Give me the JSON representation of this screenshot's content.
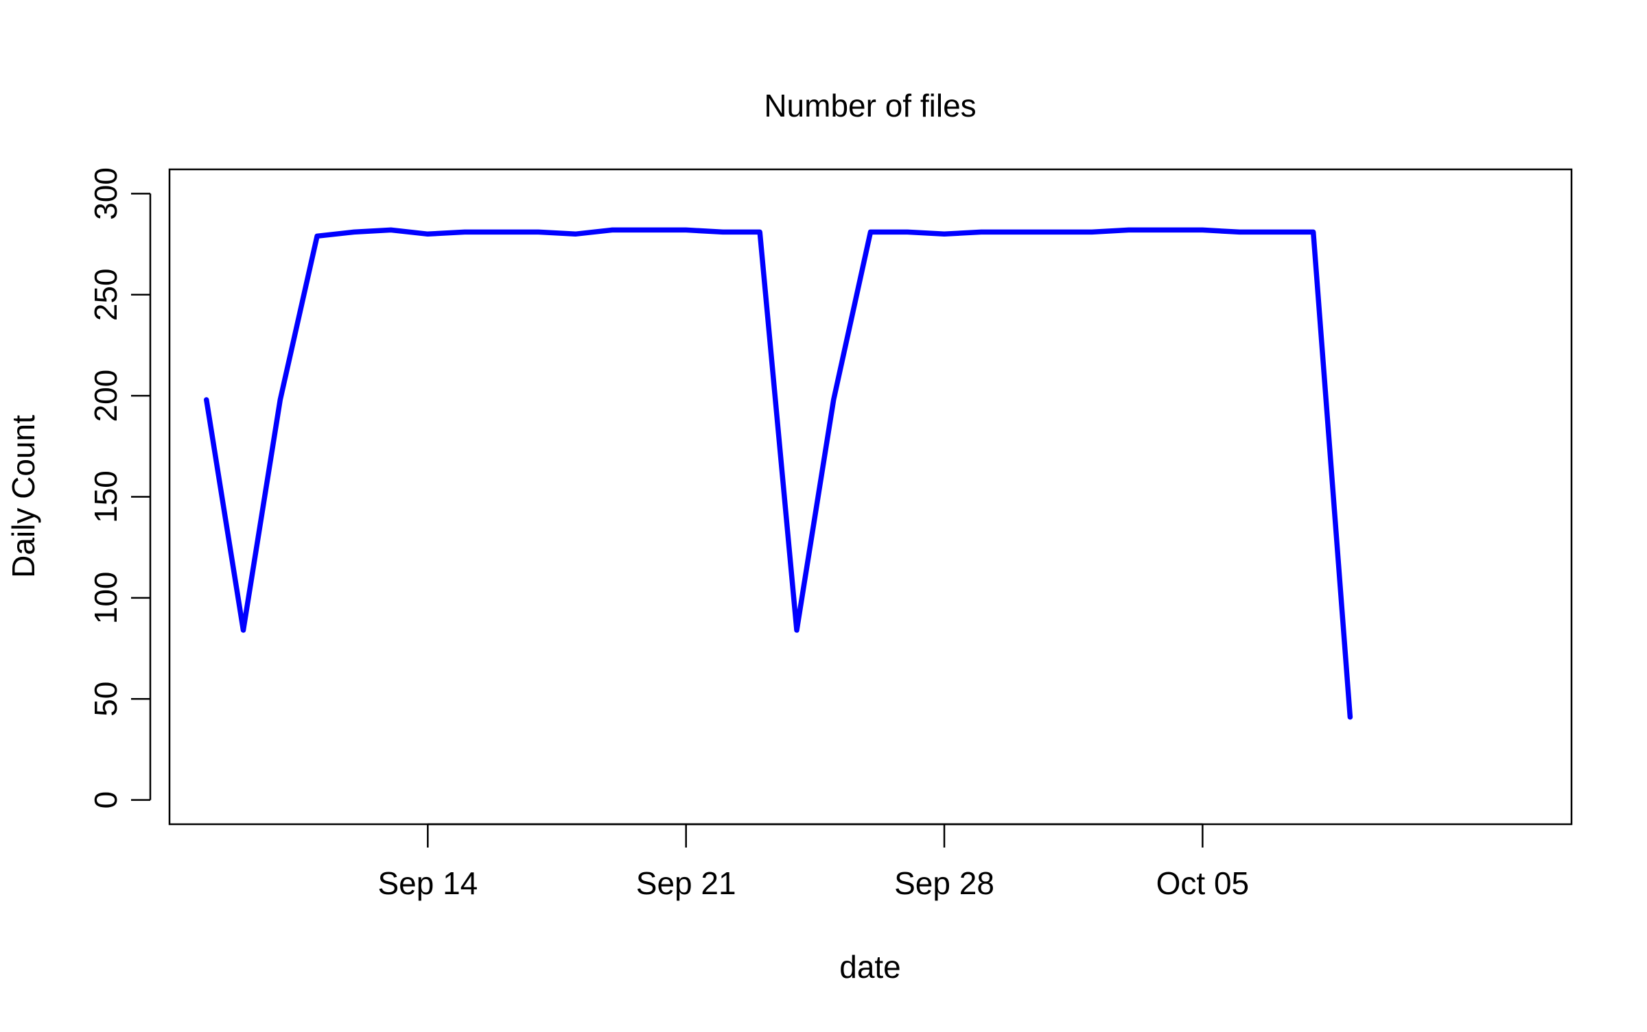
{
  "chart_data": {
    "type": "line",
    "title": "Number of files",
    "xlabel": "date",
    "ylabel": "Daily Count",
    "x_tick_labels": [
      "Sep 14",
      "Sep 21",
      "Sep 28",
      "Oct 05"
    ],
    "x_tick_dates": [
      "2024-09-14",
      "2024-09-21",
      "2024-09-28",
      "2024-10-05"
    ],
    "y_ticks": [
      0,
      50,
      100,
      150,
      200,
      250,
      300
    ],
    "xlim": [
      "2024-09-07",
      "2024-10-15"
    ],
    "ylim": [
      -12,
      312
    ],
    "grid": false,
    "series": [
      {
        "color": "#0000ff",
        "x": [
          "2024-09-08",
          "2024-09-09",
          "2024-09-10",
          "2024-09-11",
          "2024-09-12",
          "2024-09-13",
          "2024-09-14",
          "2024-09-15",
          "2024-09-16",
          "2024-09-17",
          "2024-09-18",
          "2024-09-19",
          "2024-09-20",
          "2024-09-21",
          "2024-09-22",
          "2024-09-23",
          "2024-09-24",
          "2024-09-25",
          "2024-09-26",
          "2024-09-27",
          "2024-09-28",
          "2024-09-29",
          "2024-09-30",
          "2024-10-01",
          "2024-10-02",
          "2024-10-03",
          "2024-10-04",
          "2024-10-05",
          "2024-10-06",
          "2024-10-07",
          "2024-10-08",
          "2024-10-09"
        ],
        "values": [
          198,
          84,
          198,
          279,
          281,
          282,
          280,
          281,
          281,
          281,
          280,
          282,
          282,
          282,
          281,
          281,
          84,
          198,
          281,
          281,
          280,
          281,
          281,
          281,
          281,
          282,
          282,
          282,
          281,
          281,
          281,
          41
        ]
      }
    ]
  }
}
